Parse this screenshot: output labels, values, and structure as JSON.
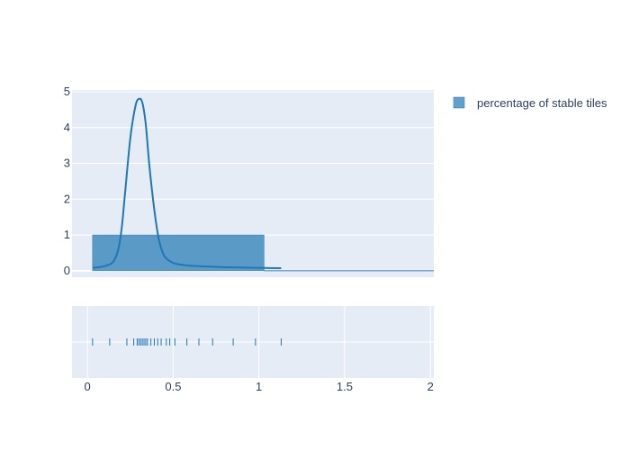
{
  "chart_data": {
    "type": "histogram+kde+rug",
    "title": "",
    "xlabel": "",
    "ylabel": "",
    "xlim": [
      -0.09,
      2.02
    ],
    "ylim": [
      -0.18,
      5.05
    ],
    "grid": true,
    "legend_position": "top-right",
    "x_ticks": [
      "0",
      "0.5",
      "1",
      "1.5",
      "2"
    ],
    "y_ticks": [
      "0",
      "1",
      "2",
      "3",
      "4",
      "5"
    ],
    "x_tick_values": [
      0,
      0.5,
      1,
      1.5,
      2
    ],
    "y_tick_values": [
      0,
      1,
      2,
      3,
      4,
      5
    ],
    "histogram": {
      "name": "percentage of stable tiles",
      "color": "#1f77b4",
      "bins": [
        {
          "x0": 0.03,
          "x1": 1.03,
          "value": 1.0
        }
      ]
    },
    "kde": {
      "color": "#1f77b4",
      "x": [
        0.03,
        0.1,
        0.15,
        0.18,
        0.2,
        0.22,
        0.25,
        0.28,
        0.3,
        0.32,
        0.34,
        0.36,
        0.38,
        0.4,
        0.42,
        0.45,
        0.5,
        0.55,
        0.6,
        0.7,
        0.8,
        0.9,
        1.0,
        1.13
      ],
      "y": [
        0.08,
        0.13,
        0.25,
        0.6,
        1.2,
        2.2,
        3.7,
        4.6,
        4.8,
        4.7,
        4.1,
        3.0,
        2.1,
        1.35,
        0.8,
        0.4,
        0.22,
        0.17,
        0.14,
        0.12,
        0.1,
        0.09,
        0.08,
        0.07
      ]
    },
    "rug": [
      0.03,
      0.13,
      0.23,
      0.27,
      0.29,
      0.3,
      0.31,
      0.32,
      0.33,
      0.34,
      0.35,
      0.37,
      0.39,
      0.41,
      0.43,
      0.46,
      0.48,
      0.51,
      0.58,
      0.65,
      0.73,
      0.85,
      0.98,
      1.13
    ]
  },
  "legend": {
    "label": "percentage of stable tiles",
    "color": "#1f77b4"
  },
  "colors": {
    "plot_background": "#e5ecf6",
    "grid": "#ffffff",
    "tick_text": "#2a3f5f",
    "series": "#1f77b4"
  }
}
